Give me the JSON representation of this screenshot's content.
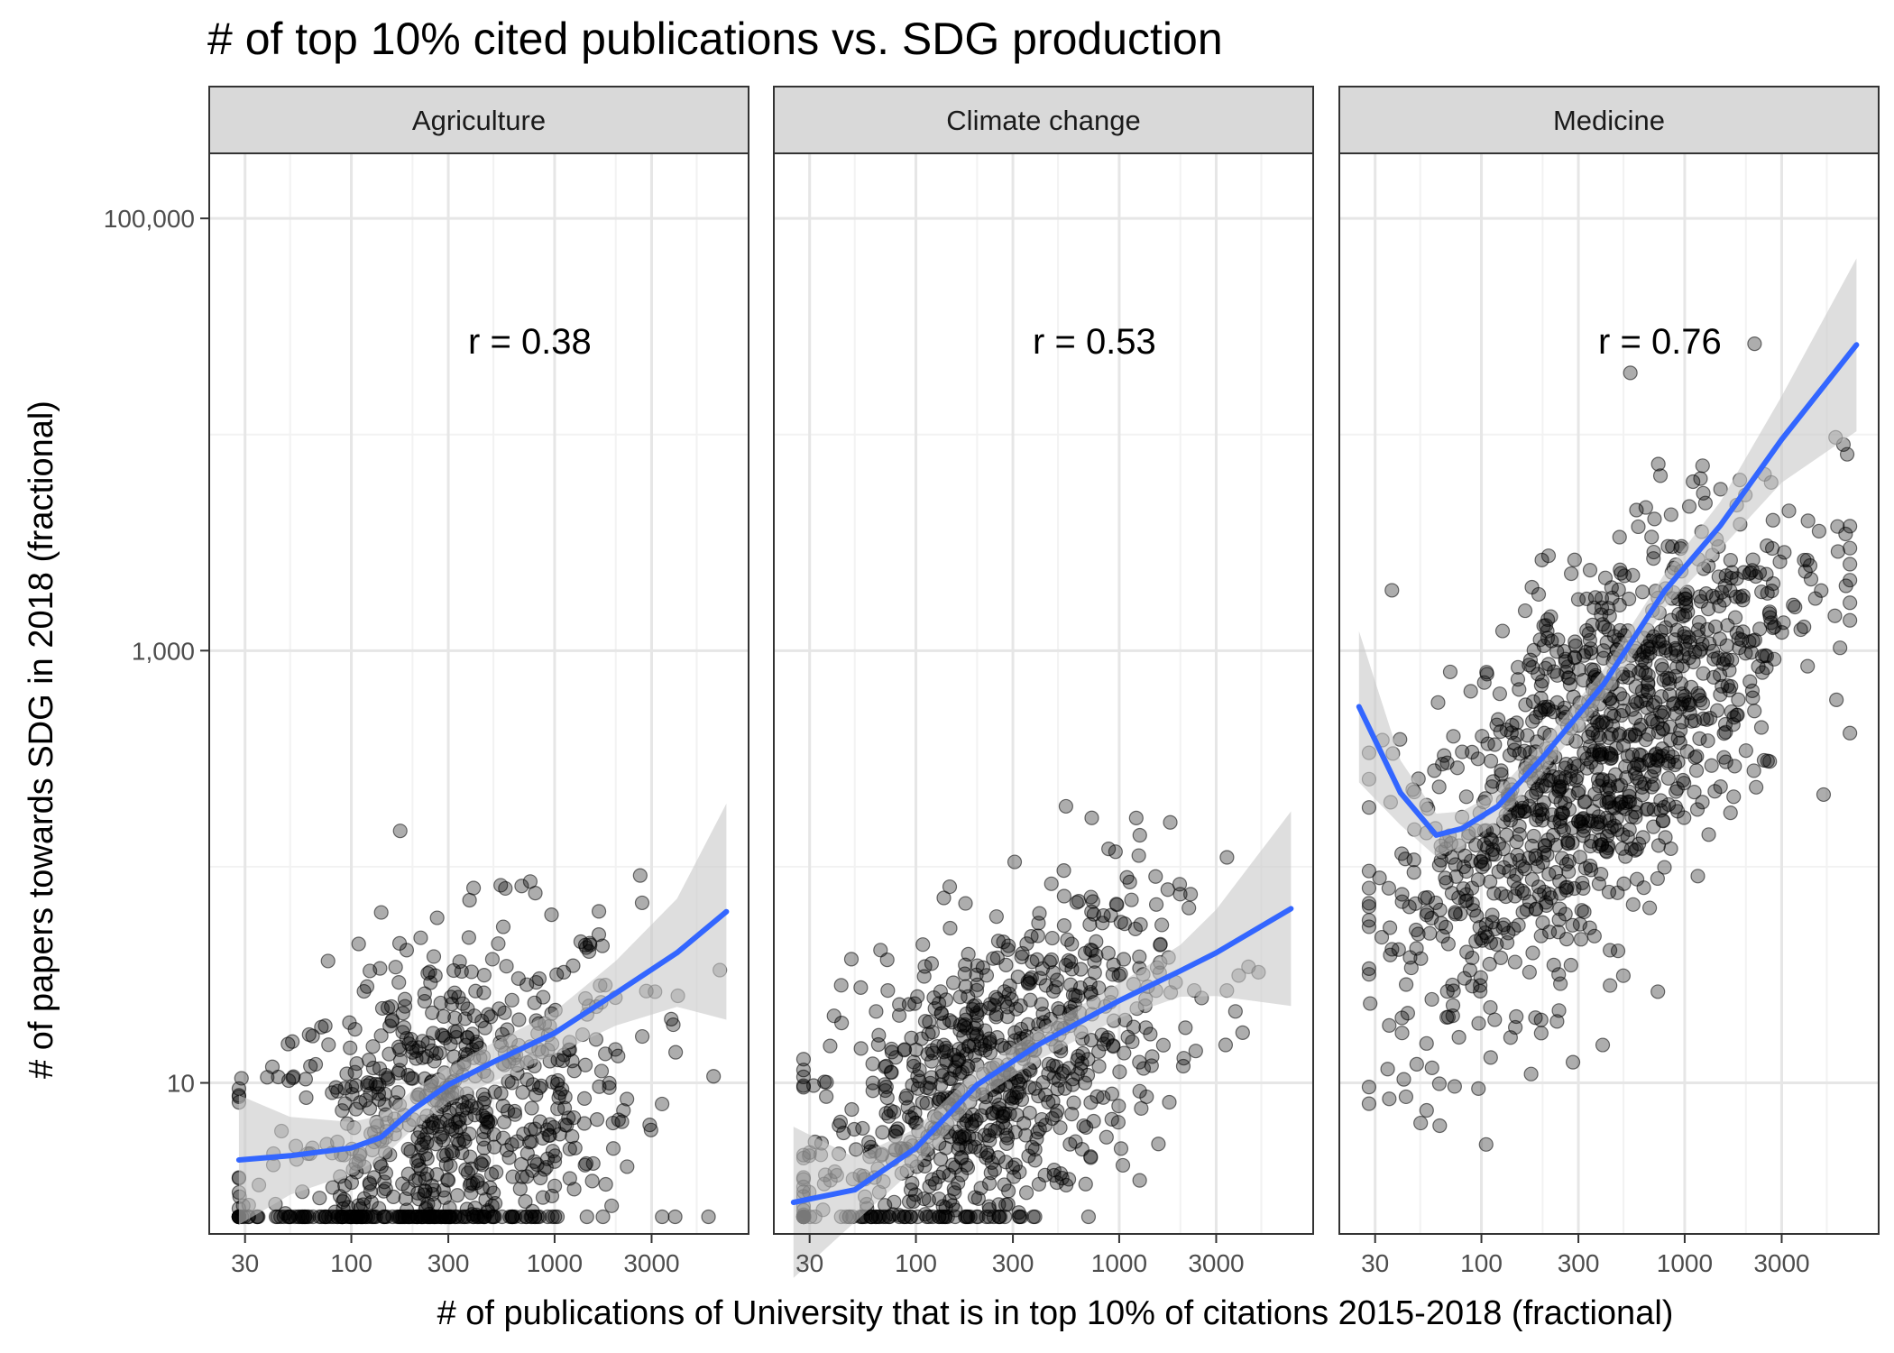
{
  "chart_data": {
    "type": "scatter",
    "title": "# of top 10% cited publications vs. SDG production",
    "xlabel": "# of publications of University that is in top 10% of citations 2015-2018 (fractional)",
    "ylabel": "# of papers towards SDG in 2018 (fractional)",
    "x_scale": "log10",
    "y_scale": "log10",
    "xlim": [
      20,
      9000
    ],
    "ylim": [
      2,
      200000
    ],
    "x_ticks": [
      30,
      100,
      300,
      1000,
      3000
    ],
    "x_tick_labels": [
      "30",
      "100",
      "300",
      "1000",
      "3000"
    ],
    "y_ticks": [
      10,
      1000,
      100000
    ],
    "y_tick_labels": [
      "10",
      "1,000",
      "100,000"
    ],
    "grid": true,
    "smoother": "loess with confidence band",
    "colors": {
      "smoother": "#3366ff",
      "band": "#c8c8c8",
      "points": "#000000",
      "strip_fill": "#d9d9d9"
    },
    "panels": [
      {
        "name": "Agriculture",
        "annotation": "r = 0.38",
        "n_points": 780,
        "trend": [
          [
            28,
            4.4
          ],
          [
            50,
            4.6
          ],
          [
            100,
            5.0
          ],
          [
            140,
            5.6
          ],
          [
            200,
            7.5
          ],
          [
            300,
            9.8
          ],
          [
            500,
            12.5
          ],
          [
            1000,
            17
          ],
          [
            2000,
            26
          ],
          [
            4000,
            40
          ],
          [
            7000,
            62
          ]
        ],
        "band_halfwidth": [
          0.3,
          0.18,
          0.12,
          0.1,
          0.09,
          0.08,
          0.09,
          0.1,
          0.15,
          0.25,
          0.5
        ],
        "x_center": 2.45,
        "x_spread": 0.48,
        "y_slope": 0.3,
        "y_intercept": 0.02,
        "y_spread": 0.45,
        "y_floor": 2.4,
        "y_cap": 250
      },
      {
        "name": "Climate change",
        "annotation": "r = 0.53",
        "n_points": 800,
        "trend": [
          [
            25,
            2.8
          ],
          [
            50,
            3.2
          ],
          [
            100,
            5.0
          ],
          [
            200,
            9.8
          ],
          [
            400,
            15
          ],
          [
            1000,
            24
          ],
          [
            2000,
            33
          ],
          [
            3000,
            40
          ],
          [
            7000,
            64
          ]
        ],
        "band_halfwidth": [
          0.35,
          0.15,
          0.09,
          0.07,
          0.07,
          0.08,
          0.12,
          0.2,
          0.45
        ],
        "x_center": 2.35,
        "x_spread": 0.45,
        "y_slope": 0.52,
        "y_intercept": -0.25,
        "y_spread": 0.38,
        "y_floor": 2.4,
        "y_cap": 300
      },
      {
        "name": "Medicine",
        "annotation": "r = 0.76",
        "n_points": 1100,
        "trend": [
          [
            25,
            550
          ],
          [
            40,
            220
          ],
          [
            60,
            140
          ],
          [
            80,
            150
          ],
          [
            120,
            190
          ],
          [
            200,
            320
          ],
          [
            400,
            700
          ],
          [
            800,
            1900
          ],
          [
            1500,
            3800
          ],
          [
            3000,
            9500
          ],
          [
            7000,
            26000
          ]
        ],
        "band_halfwidth": [
          0.35,
          0.15,
          0.1,
          0.08,
          0.07,
          0.07,
          0.07,
          0.08,
          0.11,
          0.2,
          0.4
        ],
        "x_center": 2.55,
        "x_spread": 0.5,
        "y_slope": 0.85,
        "y_intercept": 0.35,
        "y_spread": 0.45,
        "y_floor": 2.4,
        "y_cap": 40000
      }
    ]
  }
}
